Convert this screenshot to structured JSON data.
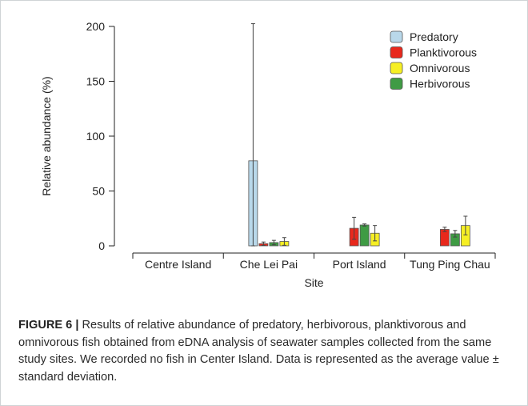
{
  "chart_data": {
    "type": "bar",
    "title": "",
    "xlabel": "Site",
    "ylabel": "Relative abundance (%)",
    "ylim": [
      0,
      200
    ],
    "yticks": [
      "0",
      "50",
      "100",
      "150",
      "200"
    ],
    "categories": [
      "Centre Island",
      "Che Lei Pai",
      "Port Island",
      "Tung Ping Chau"
    ],
    "series": [
      {
        "name": "Predatory",
        "color": "#b9d8ea",
        "values": [
          null,
          77.5,
          null,
          null
        ],
        "err": [
          null,
          125,
          null,
          null
        ]
      },
      {
        "name": "Planktivorous",
        "color": "#e8281c",
        "values": [
          null,
          2,
          16,
          15
        ],
        "err": [
          null,
          1.5,
          10,
          2
        ]
      },
      {
        "name": "Herbivorous",
        "color": "#3f9b44",
        "values": [
          null,
          3,
          19,
          11
        ],
        "err": [
          null,
          2,
          1,
          3
        ]
      },
      {
        "name": "Omnivorous",
        "color": "#f6ef24",
        "values": [
          null,
          4,
          11.5,
          18.5
        ],
        "err": [
          null,
          3.5,
          7,
          8.5
        ]
      }
    ],
    "legend": {
      "position": "top-right",
      "entries": [
        {
          "label": "Predatory",
          "color": "#b9d8ea"
        },
        {
          "label": "Planktivorous",
          "color": "#e8281c"
        },
        {
          "label": "Omnivorous",
          "color": "#f6ef24"
        },
        {
          "label": "Herbivorous",
          "color": "#3f9b44"
        }
      ]
    },
    "grid": false
  },
  "caption": {
    "label": "FIGURE 6 |",
    "text": " Results of relative abundance of predatory, herbivorous, planktivorous and omnivorous fish obtained from eDNA analysis of seawater samples collected from the same study sites. We recorded no fish in Center Island. Data is represented as the average value ± standard deviation."
  }
}
